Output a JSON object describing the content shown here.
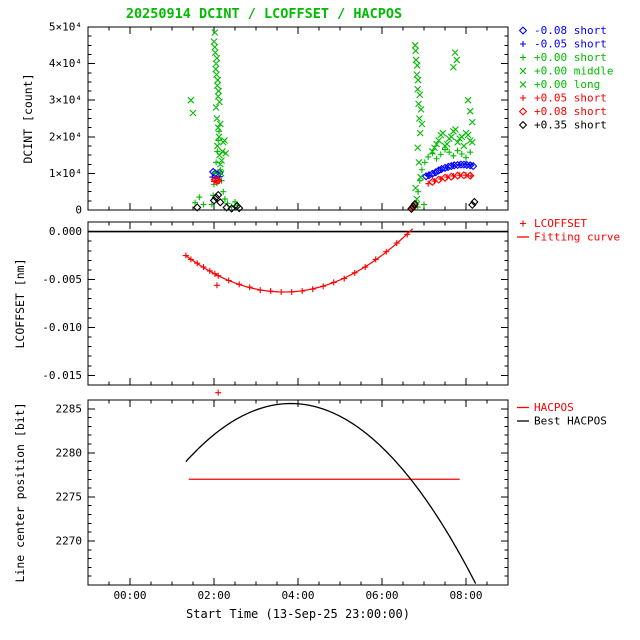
{
  "title": "20250914 DCINT / LCOFFSET / HACPOS",
  "colors": {
    "green": "#00bb00",
    "blue": "#0000ff",
    "red": "#ff0000",
    "black": "#000000"
  },
  "x_axis": {
    "label": "Start Time (13-Sep-25 23:00:00)",
    "range": [
      0,
      10
    ],
    "minor_step": 0.5,
    "ticks": [
      {
        "h": 1,
        "label": "00:00"
      },
      {
        "h": 3,
        "label": "02:00"
      },
      {
        "h": 5,
        "label": "04:00"
      },
      {
        "h": 7,
        "label": "06:00"
      },
      {
        "h": 9,
        "label": "08:00"
      }
    ]
  },
  "chart_data": [
    {
      "id": "dcint",
      "type": "scatter",
      "ylabel": "DCINT [count]",
      "ylim": [
        0,
        50000
      ],
      "yminor": 2500,
      "yticks": [
        {
          "v": 0,
          "label": "0"
        },
        {
          "v": 10000,
          "label": "1×10⁴"
        },
        {
          "v": 20000,
          "label": "2×10⁴"
        },
        {
          "v": 30000,
          "label": "3×10⁴"
        },
        {
          "v": 40000,
          "label": "4×10⁴"
        },
        {
          "v": 50000,
          "label": "5×10⁴"
        }
      ],
      "legend": [
        {
          "symbol": "diamond",
          "color": "blue",
          "label": "-0.08 short"
        },
        {
          "symbol": "plus",
          "color": "blue",
          "label": "-0.05 short"
        },
        {
          "symbol": "plus",
          "color": "green",
          "label": "+0.00 short"
        },
        {
          "symbol": "cross",
          "color": "green",
          "label": "+0.00 middle"
        },
        {
          "symbol": "cross",
          "color": "green",
          "label": "+0.00 long"
        },
        {
          "symbol": "plus",
          "color": "red",
          "label": "+0.05 short"
        },
        {
          "symbol": "diamond",
          "color": "red",
          "label": "+0.08 short"
        },
        {
          "symbol": "diamond",
          "color": "black",
          "label": "+0.35 short"
        }
      ],
      "series": [
        {
          "key": "m008",
          "name": "-0.08 short",
          "symbol": "diamond",
          "color": "blue",
          "points": [
            [
              2.98,
              10400
            ],
            [
              3.03,
              10000
            ],
            [
              3.08,
              9700
            ],
            [
              3.13,
              10200
            ],
            [
              8.05,
              9200
            ],
            [
              8.12,
              9500
            ],
            [
              8.2,
              9900
            ],
            [
              8.28,
              10300
            ],
            [
              8.35,
              10800
            ],
            [
              8.42,
              11200
            ],
            [
              8.5,
              11500
            ],
            [
              8.58,
              11800
            ],
            [
              8.65,
              12000
            ],
            [
              8.72,
              12200
            ],
            [
              8.8,
              12300
            ],
            [
              8.88,
              12400
            ],
            [
              8.95,
              12400
            ],
            [
              9.02,
              12300
            ],
            [
              9.1,
              12200
            ],
            [
              9.17,
              12000
            ]
          ]
        },
        {
          "key": "m005",
          "name": "-0.05 short",
          "symbol": "plus",
          "color": "blue",
          "points": [
            [
              2.96,
              9000
            ],
            [
              3.05,
              8700
            ],
            [
              3.14,
              9100
            ],
            [
              8.1,
              9400
            ],
            [
              8.25,
              10100
            ],
            [
              8.4,
              10900
            ],
            [
              8.55,
              11500
            ],
            [
              8.7,
              12100
            ],
            [
              8.85,
              12400
            ],
            [
              9.0,
              12500
            ],
            [
              9.12,
              12300
            ]
          ]
        },
        {
          "key": "p000s",
          "name": "+0.00 short",
          "symbol": "plus",
          "color": "green",
          "points": [
            [
              2.55,
              2000
            ],
            [
              2.65,
              3500
            ],
            [
              2.75,
              1500
            ],
            [
              2.95,
              1500
            ],
            [
              2.98,
              4000
            ],
            [
              3.0,
              7000
            ],
            [
              3.02,
              10000
            ],
            [
              3.05,
              13000
            ],
            [
              3.08,
              16000
            ],
            [
              3.1,
              19000
            ],
            [
              3.12,
              21500
            ],
            [
              3.15,
              11000
            ],
            [
              3.18,
              8000
            ],
            [
              3.22,
              5000
            ],
            [
              3.26,
              3000
            ],
            [
              3.32,
              1800
            ],
            [
              3.42,
              900
            ],
            [
              3.5,
              2200
            ],
            [
              3.56,
              1300
            ],
            [
              7.82,
              2000
            ],
            [
              7.86,
              5000
            ],
            [
              7.9,
              8000
            ],
            [
              7.95,
              11000
            ],
            [
              8.02,
              13000
            ],
            [
              8.1,
              14500
            ],
            [
              8.2,
              15500
            ],
            [
              8.3,
              14000
            ],
            [
              8.4,
              15200
            ],
            [
              8.5,
              16500
            ],
            [
              8.6,
              15800
            ],
            [
              8.7,
              14800
            ],
            [
              8.8,
              16200
            ],
            [
              8.9,
              15300
            ],
            [
              9.0,
              14300
            ],
            [
              9.1,
              15800
            ],
            [
              7.85,
              800
            ],
            [
              8.0,
              1500
            ]
          ]
        },
        {
          "key": "p000m",
          "name": "+0.00 middle",
          "symbol": "cross",
          "color": "green",
          "points": [
            [
              2.45,
              30000
            ],
            [
              2.5,
              26500
            ],
            [
              3.0,
              46000
            ],
            [
              3.02,
              48500
            ],
            [
              3.03,
              43000
            ],
            [
              3.05,
              40000
            ],
            [
              3.06,
              37000
            ],
            [
              3.08,
              34000
            ],
            [
              3.1,
              31000
            ],
            [
              3.05,
              28000
            ],
            [
              3.07,
              25000
            ],
            [
              3.1,
              22500
            ],
            [
              3.12,
              20000
            ],
            [
              3.08,
              17500
            ],
            [
              3.13,
              15000
            ],
            [
              3.15,
              12500
            ],
            [
              3.17,
              10000
            ],
            [
              3.2,
              16000
            ],
            [
              3.22,
              18500
            ],
            [
              7.79,
              45000
            ],
            [
              7.81,
              41000
            ],
            [
              7.83,
              37000
            ],
            [
              7.85,
              33000
            ],
            [
              7.87,
              29000
            ],
            [
              7.89,
              25000
            ],
            [
              7.91,
              21000
            ],
            [
              7.85,
              17000
            ],
            [
              7.88,
              13000
            ],
            [
              7.92,
              9000
            ],
            [
              7.8,
              6000
            ],
            [
              7.83,
              3000
            ],
            [
              8.2,
              16000
            ],
            [
              8.3,
              18000
            ],
            [
              8.4,
              20500
            ],
            [
              8.5,
              17500
            ],
            [
              8.6,
              19500
            ],
            [
              8.7,
              21500
            ],
            [
              8.8,
              18500
            ],
            [
              8.9,
              20000
            ],
            [
              9.0,
              21000
            ],
            [
              9.1,
              19000
            ],
            [
              8.74,
              43000
            ],
            [
              8.78,
              41000
            ],
            [
              8.7,
              39000
            ],
            [
              9.05,
              30000
            ],
            [
              9.1,
              27000
            ],
            [
              9.15,
              24000
            ]
          ]
        },
        {
          "key": "p000l",
          "name": "+0.00 long",
          "symbol": "cross",
          "color": "green",
          "points": [
            [
              3.02,
              44500
            ],
            [
              3.07,
              41500
            ],
            [
              3.04,
              38500
            ],
            [
              3.09,
              35500
            ],
            [
              3.11,
              32500
            ],
            [
              3.13,
              29500
            ],
            [
              3.15,
              23500
            ],
            [
              3.18,
              13500
            ],
            [
              3.25,
              19000
            ],
            [
              3.28,
              15500
            ],
            [
              7.8,
              43500
            ],
            [
              7.84,
              39500
            ],
            [
              7.86,
              35500
            ],
            [
              7.9,
              31500
            ],
            [
              7.93,
              27500
            ],
            [
              7.95,
              23500
            ],
            [
              8.25,
              17000
            ],
            [
              8.35,
              19000
            ],
            [
              8.45,
              21000
            ],
            [
              8.55,
              18000
            ],
            [
              8.65,
              20000
            ],
            [
              8.75,
              22000
            ],
            [
              8.85,
              19500
            ],
            [
              8.95,
              17500
            ],
            [
              9.05,
              20500
            ],
            [
              9.15,
              18500
            ]
          ]
        },
        {
          "key": "p005",
          "name": "+0.05 short",
          "symbol": "plus",
          "color": "red",
          "points": [
            [
              3.0,
              7800
            ],
            [
              3.07,
              7400
            ],
            [
              3.12,
              7900
            ],
            [
              8.1,
              7200
            ],
            [
              8.25,
              7900
            ],
            [
              8.4,
              8500
            ],
            [
              8.55,
              9000
            ],
            [
              8.7,
              9300
            ],
            [
              8.85,
              9500
            ],
            [
              9.0,
              9500
            ],
            [
              9.12,
              9300
            ]
          ]
        },
        {
          "key": "p008",
          "name": "+0.08 short",
          "symbol": "diamond",
          "color": "red",
          "points": [
            [
              3.02,
              8300
            ],
            [
              3.1,
              8100
            ],
            [
              7.72,
              600
            ],
            [
              7.76,
              1000
            ],
            [
              8.2,
              7700
            ],
            [
              8.35,
              8300
            ],
            [
              8.5,
              8800
            ],
            [
              8.65,
              9100
            ],
            [
              8.8,
              9400
            ],
            [
              8.95,
              9500
            ],
            [
              9.1,
              9400
            ]
          ]
        },
        {
          "key": "p035",
          "name": "+0.35 short",
          "symbol": "diamond",
          "color": "black",
          "points": [
            [
              3.0,
              2600
            ],
            [
              3.05,
              3400
            ],
            [
              3.1,
              4100
            ],
            [
              3.15,
              2100
            ],
            [
              2.6,
              700
            ],
            [
              3.3,
              700
            ],
            [
              3.42,
              400
            ],
            [
              3.55,
              1100
            ],
            [
              3.6,
              500
            ],
            [
              7.7,
              300
            ],
            [
              7.74,
              900
            ],
            [
              7.78,
              1600
            ],
            [
              9.15,
              1400
            ],
            [
              9.2,
              2200
            ]
          ]
        }
      ]
    },
    {
      "id": "lcoffset",
      "type": "scatter+line",
      "ylabel": "LCOFFSET [nm]",
      "ylim": [
        -0.016,
        0.001
      ],
      "yminor": 0.001,
      "yticks": [
        {
          "v": 0,
          "label": "0.000"
        },
        {
          "v": -0.005,
          "label": "-0.005"
        },
        {
          "v": -0.01,
          "label": "-0.010"
        },
        {
          "v": -0.015,
          "label": "-0.015"
        }
      ],
      "zero_line": 0,
      "scatter": {
        "name": "LCOFFSET",
        "symbol": "plus",
        "color": "red",
        "points": [
          [
            2.33,
            -0.0025
          ],
          [
            2.45,
            -0.0029
          ],
          [
            2.6,
            -0.0033
          ],
          [
            2.75,
            -0.0037
          ],
          [
            2.9,
            -0.0041
          ],
          [
            3.02,
            -0.0044
          ],
          [
            3.07,
            -0.0056
          ],
          [
            3.1,
            -0.0168
          ],
          [
            3.1,
            -0.0046
          ],
          [
            3.35,
            -0.0051
          ],
          [
            3.6,
            -0.0055
          ],
          [
            3.85,
            -0.0058
          ],
          [
            4.1,
            -0.0061
          ],
          [
            4.35,
            -0.0062
          ],
          [
            4.6,
            -0.0063
          ],
          [
            4.85,
            -0.0063
          ],
          [
            5.1,
            -0.0062
          ],
          [
            5.35,
            -0.006
          ],
          [
            5.6,
            -0.0057
          ],
          [
            5.85,
            -0.0053
          ],
          [
            6.1,
            -0.0049
          ],
          [
            6.35,
            -0.0043
          ],
          [
            6.6,
            -0.0037
          ],
          [
            6.85,
            -0.0029
          ],
          [
            7.1,
            -0.0021
          ],
          [
            7.35,
            -0.0012
          ],
          [
            7.6,
            -0.0003
          ]
        ]
      },
      "fit_curve": {
        "name": "Fitting curve",
        "color": "red",
        "a": 0.0007,
        "x0": 4.66,
        "y_min": -0.0063,
        "x_start": 2.33,
        "x_end": 7.75
      },
      "legend": [
        {
          "symbol": "plus",
          "color": "red",
          "label": "LCOFFSET"
        },
        {
          "symbol": "line",
          "color": "red",
          "label": "Fitting curve"
        }
      ]
    },
    {
      "id": "hacpos",
      "type": "line",
      "ylabel": "Line center position [bit]",
      "ylim": [
        2265,
        2286
      ],
      "yminor": 1,
      "yticks": [
        {
          "v": 2270,
          "label": "2270"
        },
        {
          "v": 2275,
          "label": "2275"
        },
        {
          "v": 2280,
          "label": "2280"
        },
        {
          "v": 2285,
          "label": "2285"
        }
      ],
      "hline": {
        "name": "HACPOS",
        "color": "red",
        "y": 2277,
        "x_start": 2.4,
        "x_end": 8.85
      },
      "best_curve": {
        "name": "Best HACPOS",
        "color": "black",
        "a": -1.056,
        "x0": 4.83,
        "y_max": 2285.6,
        "x_start": 2.33,
        "x_end": 9.25
      },
      "legend": [
        {
          "symbol": "line",
          "color": "red",
          "label": "HACPOS"
        },
        {
          "symbol": "line",
          "color": "black",
          "label": "Best HACPOS"
        }
      ]
    }
  ]
}
